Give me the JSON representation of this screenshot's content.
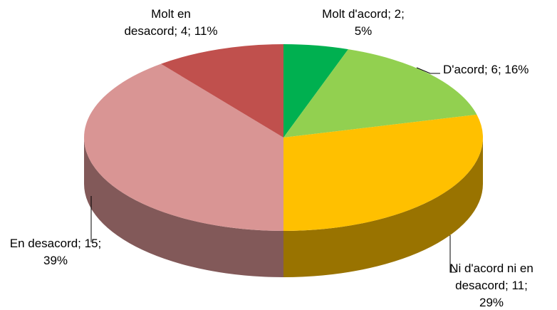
{
  "chart_data": {
    "type": "pie3d",
    "categories": [
      "Molt d'acord",
      "D'acord",
      "Ni d'acord ni en desacord",
      "En desacord",
      "Molt en desacord"
    ],
    "values": [
      2,
      6,
      11,
      15,
      4
    ],
    "percentages": [
      5,
      16,
      29,
      39,
      11
    ],
    "value_labels": [
      "Molt d'acord; 2; 5%",
      "D'acord; 6; 16%",
      "Ni d'acord ni en desacord; 11; 29%",
      "En desacord; 15; 39%",
      "Molt en desacord; 4; 11%"
    ],
    "colors": [
      "#00b050",
      "#92d050",
      "#ffc000",
      "#d99594",
      "#c0504d"
    ]
  }
}
